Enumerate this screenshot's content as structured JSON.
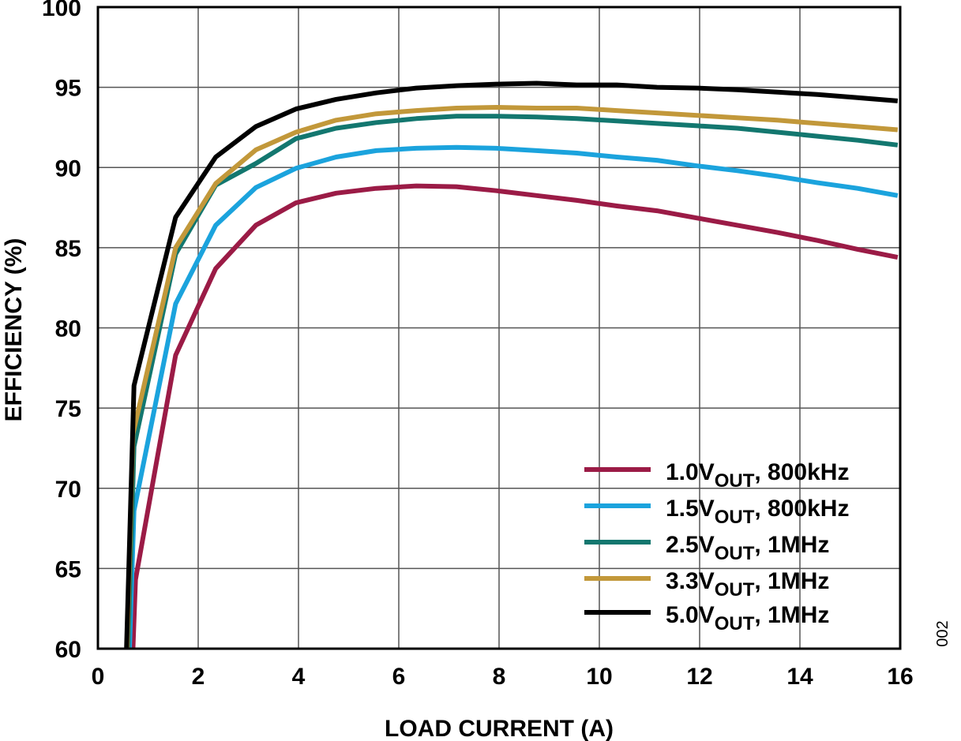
{
  "chart_data": {
    "type": "line",
    "xlabel": "LOAD CURRENT (A)",
    "ylabel": "EFFICIENCY (%)",
    "xlim": [
      0,
      16
    ],
    "ylim": [
      60,
      100
    ],
    "xticks": [
      "0",
      "2",
      "4",
      "6",
      "8",
      "10",
      "12",
      "14",
      "16"
    ],
    "yticks": [
      "60",
      "65",
      "70",
      "75",
      "80",
      "85",
      "90",
      "95",
      "100"
    ],
    "grid": true,
    "legend_position": "bottom-right",
    "figure_id": "002",
    "series": [
      {
        "name": "1.0V",
        "sub": "OUT",
        "suffix": ", 800kHz",
        "color": "#9b1b46",
        "points": [
          [
            0.7,
            60.0
          ],
          [
            0.75,
            64.3
          ],
          [
            1.55,
            78.3
          ],
          [
            2.35,
            83.7
          ],
          [
            3.15,
            86.4
          ],
          [
            3.95,
            87.8
          ],
          [
            4.75,
            88.4
          ],
          [
            5.55,
            88.7
          ],
          [
            6.35,
            88.85
          ],
          [
            7.15,
            88.8
          ],
          [
            7.95,
            88.55
          ],
          [
            8.75,
            88.25
          ],
          [
            9.55,
            87.95
          ],
          [
            10.35,
            87.6
          ],
          [
            11.15,
            87.3
          ],
          [
            11.95,
            86.85
          ],
          [
            12.75,
            86.4
          ],
          [
            13.55,
            85.95
          ],
          [
            14.35,
            85.45
          ],
          [
            15.15,
            84.9
          ],
          [
            15.95,
            84.4
          ]
        ]
      },
      {
        "name": "1.5V",
        "sub": "OUT",
        "suffix": ", 800kHz",
        "color": "#1ba3dd",
        "points": [
          [
            0.63,
            60.0
          ],
          [
            0.72,
            68.6
          ],
          [
            1.55,
            81.5
          ],
          [
            2.35,
            86.4
          ],
          [
            3.15,
            88.75
          ],
          [
            3.95,
            89.95
          ],
          [
            4.75,
            90.65
          ],
          [
            5.55,
            91.05
          ],
          [
            6.35,
            91.2
          ],
          [
            7.15,
            91.25
          ],
          [
            7.95,
            91.2
          ],
          [
            8.75,
            91.05
          ],
          [
            9.55,
            90.9
          ],
          [
            10.35,
            90.65
          ],
          [
            11.15,
            90.45
          ],
          [
            11.95,
            90.1
          ],
          [
            12.75,
            89.8
          ],
          [
            13.55,
            89.45
          ],
          [
            14.35,
            89.05
          ],
          [
            15.15,
            88.7
          ],
          [
            15.95,
            88.25
          ]
        ]
      },
      {
        "name": "2.5V",
        "sub": "OUT",
        "suffix": ", 1MHz",
        "color": "#13776f",
        "points": [
          [
            0.6,
            60.0
          ],
          [
            0.72,
            72.6
          ],
          [
            1.55,
            84.6
          ],
          [
            2.35,
            88.9
          ],
          [
            3.15,
            90.25
          ],
          [
            3.95,
            91.8
          ],
          [
            4.75,
            92.45
          ],
          [
            5.55,
            92.8
          ],
          [
            6.35,
            93.05
          ],
          [
            7.15,
            93.2
          ],
          [
            7.95,
            93.2
          ],
          [
            8.75,
            93.15
          ],
          [
            9.55,
            93.05
          ],
          [
            10.35,
            92.9
          ],
          [
            11.15,
            92.75
          ],
          [
            11.95,
            92.6
          ],
          [
            12.75,
            92.45
          ],
          [
            13.55,
            92.2
          ],
          [
            14.35,
            91.95
          ],
          [
            15.15,
            91.7
          ],
          [
            15.95,
            91.4
          ]
        ]
      },
      {
        "name": "3.3V",
        "sub": "OUT",
        "suffix": ", 1MHz",
        "color": "#c2983a",
        "points": [
          [
            0.58,
            60.0
          ],
          [
            0.7,
            73.4
          ],
          [
            1.55,
            85.0
          ],
          [
            2.35,
            89.0
          ],
          [
            3.15,
            91.1
          ],
          [
            3.95,
            92.2
          ],
          [
            4.75,
            92.95
          ],
          [
            5.55,
            93.35
          ],
          [
            6.35,
            93.55
          ],
          [
            7.15,
            93.7
          ],
          [
            7.95,
            93.75
          ],
          [
            8.75,
            93.7
          ],
          [
            9.55,
            93.7
          ],
          [
            10.35,
            93.55
          ],
          [
            11.15,
            93.4
          ],
          [
            11.95,
            93.25
          ],
          [
            12.75,
            93.1
          ],
          [
            13.55,
            92.95
          ],
          [
            14.35,
            92.75
          ],
          [
            15.15,
            92.55
          ],
          [
            15.95,
            92.35
          ]
        ]
      },
      {
        "name": "5.0V",
        "sub": "OUT",
        "suffix": ", 1MHz",
        "color": "#000000",
        "points": [
          [
            0.57,
            60.0
          ],
          [
            0.72,
            76.4
          ],
          [
            1.55,
            86.9
          ],
          [
            2.35,
            90.65
          ],
          [
            3.15,
            92.55
          ],
          [
            3.95,
            93.65
          ],
          [
            4.75,
            94.25
          ],
          [
            5.55,
            94.65
          ],
          [
            6.35,
            94.95
          ],
          [
            7.15,
            95.1
          ],
          [
            7.95,
            95.2
          ],
          [
            8.75,
            95.25
          ],
          [
            9.55,
            95.15
          ],
          [
            10.35,
            95.15
          ],
          [
            11.15,
            95.0
          ],
          [
            11.95,
            94.95
          ],
          [
            12.75,
            94.85
          ],
          [
            13.55,
            94.7
          ],
          [
            14.35,
            94.55
          ],
          [
            15.15,
            94.35
          ],
          [
            15.95,
            94.15
          ]
        ]
      }
    ]
  }
}
